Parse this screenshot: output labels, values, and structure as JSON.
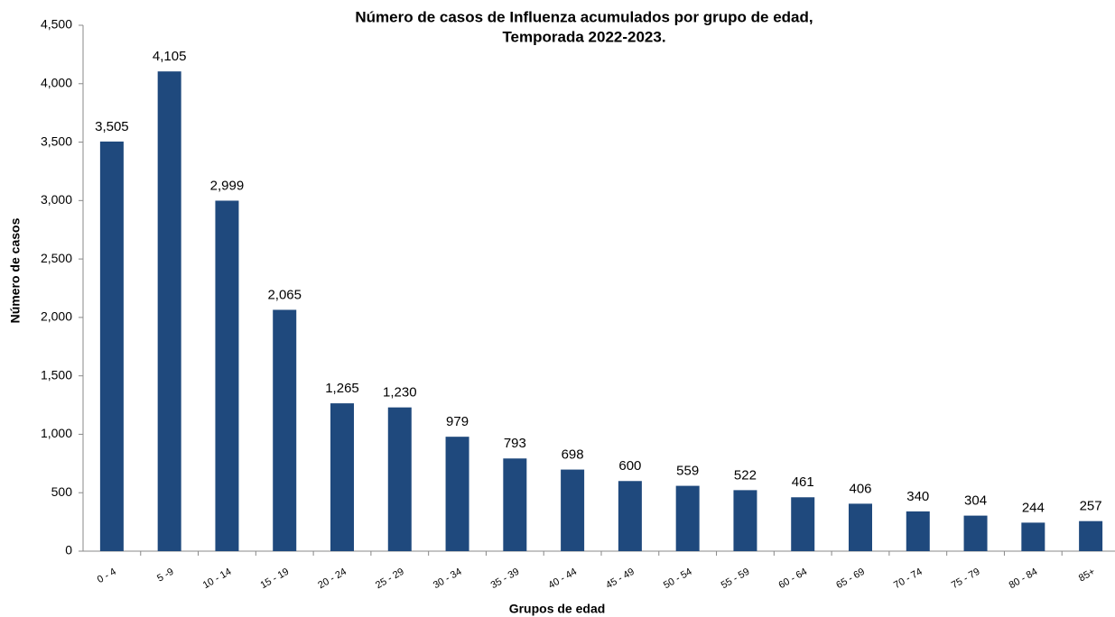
{
  "chart_data": {
    "type": "bar",
    "title": [
      "Número de casos de Influenza acumulados por grupo de edad,",
      "Temporada 2022-2023."
    ],
    "x_label": "Grupos de edad",
    "y_label": "Número de casos",
    "categories": [
      "0 - 4",
      "5 -9",
      "10 - 14",
      "15 - 19",
      "20 - 24",
      "25 - 29",
      "30 - 34",
      "35 - 39",
      "40 - 44",
      "45 - 49",
      "50 - 54",
      "55 - 59",
      "60 - 64",
      "65 - 69",
      "70 - 74",
      "75 - 79",
      "80 - 84",
      "85+"
    ],
    "values": [
      3505,
      4105,
      2999,
      2065,
      1265,
      1230,
      979,
      793,
      698,
      600,
      559,
      522,
      461,
      406,
      340,
      304,
      244,
      257
    ],
    "value_labels": [
      "3,505",
      "4,105",
      "2,999",
      "2,065",
      "1,265",
      "1,230",
      "979",
      "793",
      "698",
      "600",
      "559",
      "522",
      "461",
      "406",
      "340",
      "304",
      "244",
      "257"
    ],
    "color": "#1f497d",
    "ylim": [
      0,
      4500
    ],
    "yticks": [
      0,
      500,
      {
        "value": 1000,
        "label": "1,000"
      },
      {
        "value": 1500,
        "label": "1,500"
      },
      {
        "value": 2000,
        "label": "2,000"
      },
      {
        "value": 2500,
        "label": "2,500"
      },
      {
        "value": 3000,
        "label": "3,000"
      },
      {
        "value": 3500,
        "label": "3,500"
      },
      {
        "value": 4000,
        "label": "4,000"
      },
      {
        "value": 4500,
        "label": "4,500"
      }
    ],
    "grid": false
  }
}
